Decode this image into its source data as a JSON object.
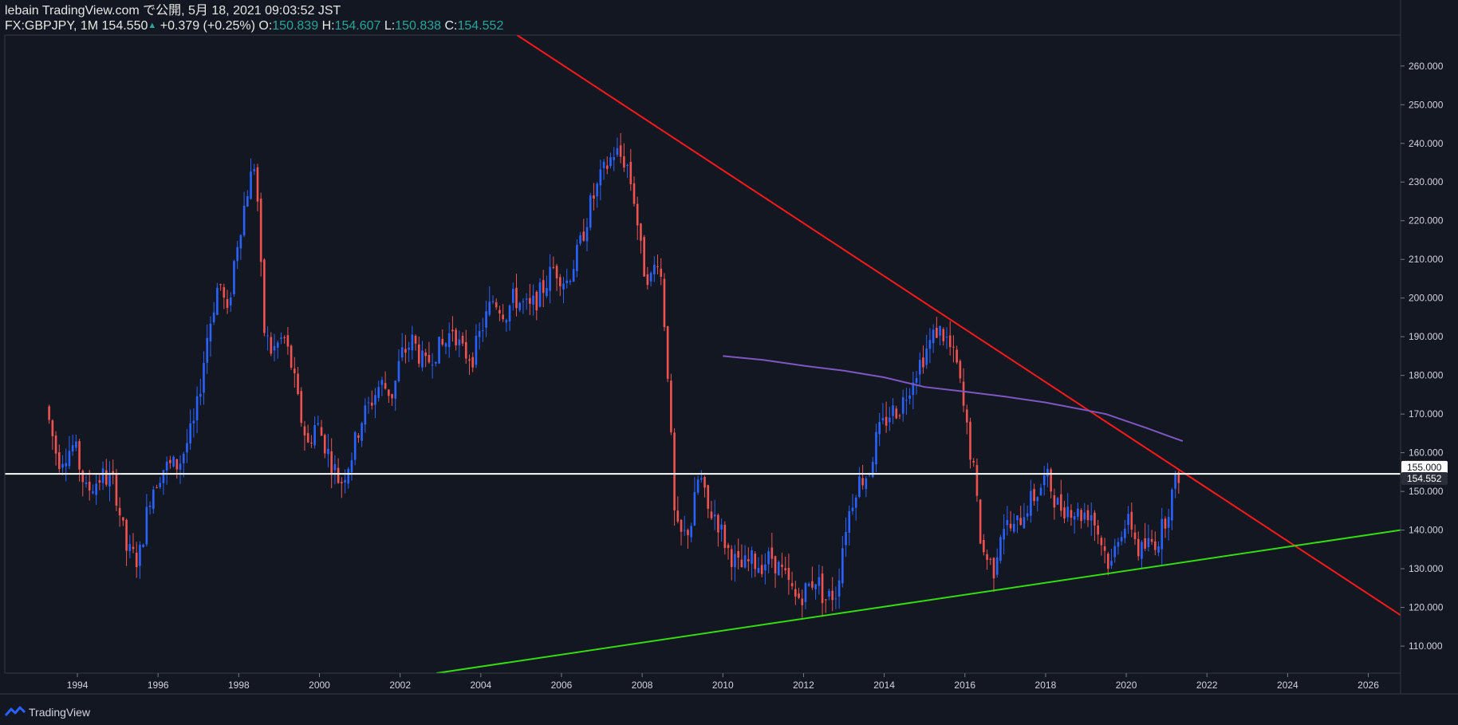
{
  "header": {
    "publisher": "lebain TradingView.com で公開, 5月 18, 2021 09:03:52 JST",
    "symbol": "FX:GBPJPY, 1M",
    "last": "154.550",
    "change_arrow": "▲",
    "change": "+0.379 (+0.25%)",
    "o_label": "O:",
    "o": "150.839",
    "h_label": "H:",
    "h": "154.607",
    "l_label": "L:",
    "l": "150.838",
    "c_label": "C:",
    "c": "154.552"
  },
  "footer": {
    "brand": "TradingView",
    "icon": "tradingview-logo-icon"
  },
  "colors": {
    "background": "#131722",
    "up": "#2962ff",
    "down": "#ef5350",
    "resistance": "#ff1a1a",
    "support": "#33dd11",
    "ma": "#7e57c2",
    "horizontal": "#ffffff"
  },
  "chart_data": {
    "type": "candlestick",
    "symbol": "FX:GBPJPY",
    "interval": "1M",
    "x_range": [
      1992.2,
      2026.8
    ],
    "ylim": [
      103,
      268
    ],
    "x_ticks": [
      "1994",
      "1996",
      "1998",
      "2000",
      "2002",
      "2004",
      "2006",
      "2008",
      "2010",
      "2012",
      "2014",
      "2016",
      "2018",
      "2020",
      "2022",
      "2024",
      "2026"
    ],
    "y_ticks": [
      "110.000",
      "120.000",
      "130.000",
      "140.000",
      "150.000",
      "160.000",
      "170.000",
      "180.000",
      "190.000",
      "200.000",
      "210.000",
      "220.000",
      "230.000",
      "240.000",
      "250.000",
      "260.000"
    ],
    "price_labels": [
      {
        "value": 155.0,
        "text": "155.000",
        "style": "white"
      },
      {
        "value": 154.552,
        "text": "154.552",
        "style": "dark"
      }
    ],
    "path_points": [
      [
        1993.3,
        172
      ],
      [
        1993.6,
        158
      ],
      [
        1994.0,
        162
      ],
      [
        1994.3,
        150
      ],
      [
        1994.7,
        154
      ],
      [
        1995.0,
        152
      ],
      [
        1995.3,
        135
      ],
      [
        1995.6,
        132
      ],
      [
        1995.9,
        150
      ],
      [
        1996.2,
        156
      ],
      [
        1996.6,
        157
      ],
      [
        1997.0,
        168
      ],
      [
        1997.3,
        190
      ],
      [
        1997.6,
        205
      ],
      [
        1997.8,
        195
      ],
      [
        1998.0,
        212
      ],
      [
        1998.3,
        228
      ],
      [
        1998.5,
        236
      ],
      [
        1998.7,
        192
      ],
      [
        1998.9,
        186
      ],
      [
        1999.2,
        190
      ],
      [
        1999.4,
        182
      ],
      [
        1999.6,
        170
      ],
      [
        1999.8,
        162
      ],
      [
        2000.0,
        168
      ],
      [
        2000.3,
        160
      ],
      [
        2000.6,
        152
      ],
      [
        2000.9,
        160
      ],
      [
        2001.1,
        168
      ],
      [
        2001.3,
        172
      ],
      [
        2001.6,
        178
      ],
      [
        2001.9,
        175
      ],
      [
        2002.1,
        185
      ],
      [
        2002.4,
        189
      ],
      [
        2002.7,
        182
      ],
      [
        2002.9,
        186
      ],
      [
        2003.2,
        188
      ],
      [
        2003.4,
        193
      ],
      [
        2003.6,
        186
      ],
      [
        2003.9,
        185
      ],
      [
        2004.1,
        192
      ],
      [
        2004.4,
        200
      ],
      [
        2004.7,
        196
      ],
      [
        2004.9,
        200
      ],
      [
        2005.3,
        197
      ],
      [
        2005.6,
        202
      ],
      [
        2005.9,
        208
      ],
      [
        2006.2,
        204
      ],
      [
        2006.5,
        212
      ],
      [
        2006.8,
        224
      ],
      [
        2007.1,
        232
      ],
      [
        2007.4,
        238
      ],
      [
        2007.7,
        235
      ],
      [
        2007.9,
        225
      ],
      [
        2008.1,
        208
      ],
      [
        2008.3,
        205
      ],
      [
        2008.5,
        212
      ],
      [
        2008.7,
        185
      ],
      [
        2008.9,
        140
      ],
      [
        2009.1,
        138
      ],
      [
        2009.3,
        142
      ],
      [
        2009.5,
        155
      ],
      [
        2009.7,
        145
      ],
      [
        2009.9,
        144
      ],
      [
        2010.2,
        135
      ],
      [
        2010.5,
        130
      ],
      [
        2010.8,
        132
      ],
      [
        2011.0,
        131
      ],
      [
        2011.3,
        133
      ],
      [
        2011.6,
        128
      ],
      [
        2011.9,
        122
      ],
      [
        2012.1,
        124
      ],
      [
        2012.4,
        128
      ],
      [
        2012.6,
        122
      ],
      [
        2012.9,
        124
      ],
      [
        2013.1,
        140
      ],
      [
        2013.4,
        152
      ],
      [
        2013.7,
        155
      ],
      [
        2013.9,
        164
      ],
      [
        2014.2,
        170
      ],
      [
        2014.5,
        172
      ],
      [
        2014.8,
        180
      ],
      [
        2015.1,
        186
      ],
      [
        2015.4,
        192
      ],
      [
        2015.6,
        190
      ],
      [
        2015.9,
        182
      ],
      [
        2016.1,
        168
      ],
      [
        2016.3,
        155
      ],
      [
        2016.5,
        135
      ],
      [
        2016.8,
        130
      ],
      [
        2017.0,
        142
      ],
      [
        2017.3,
        140
      ],
      [
        2017.6,
        146
      ],
      [
        2017.9,
        150
      ],
      [
        2018.1,
        154
      ],
      [
        2018.4,
        146
      ],
      [
        2018.7,
        146
      ],
      [
        2018.9,
        144
      ],
      [
        2019.2,
        145
      ],
      [
        2019.5,
        136
      ],
      [
        2019.7,
        130
      ],
      [
        2019.9,
        140
      ],
      [
        2020.2,
        142
      ],
      [
        2020.4,
        134
      ],
      [
        2020.6,
        136
      ],
      [
        2020.9,
        138
      ],
      [
        2021.1,
        145
      ],
      [
        2021.37,
        154.55
      ]
    ],
    "lines": [
      {
        "name": "resistance-trendline",
        "color": "#ff1a1a",
        "points": [
          [
            2004.9,
            268
          ],
          [
            2026.8,
            118
          ]
        ]
      },
      {
        "name": "support-trendline",
        "color": "#33dd11",
        "points": [
          [
            2002.9,
            103
          ],
          [
            2026.8,
            140
          ]
        ]
      },
      {
        "name": "moving-average",
        "color": "#7e57c2",
        "points": [
          [
            2010.0,
            185
          ],
          [
            2011.0,
            184
          ],
          [
            2012.0,
            182.5
          ],
          [
            2013.0,
            181.2
          ],
          [
            2014.0,
            179.5
          ],
          [
            2015.0,
            177
          ],
          [
            2016.0,
            175.8
          ],
          [
            2017.0,
            174.5
          ],
          [
            2018.0,
            173
          ],
          [
            2019.0,
            171
          ],
          [
            2019.5,
            170
          ],
          [
            2020.0,
            168.2
          ],
          [
            2020.5,
            166.4
          ],
          [
            2021.0,
            164.5
          ],
          [
            2021.4,
            163
          ]
        ]
      },
      {
        "name": "horizontal-level",
        "color": "#ffffff",
        "points": [
          [
            1992.2,
            154.55
          ],
          [
            2026.8,
            154.55
          ]
        ]
      }
    ]
  }
}
